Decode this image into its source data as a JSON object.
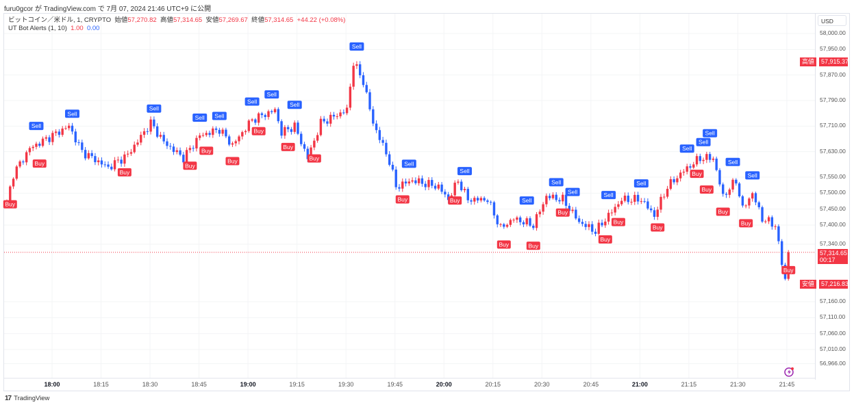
{
  "published": "furu0gcor が TradingView.com で 7月 07, 2024 21:46 UTC+9 に公開",
  "legend": {
    "symbol": "ビットコイン／米ドル, 1, CRYPTO",
    "open_label": "始値",
    "open": "57,270.82",
    "high_label": "高値",
    "high": "57,314.65",
    "low_label": "安値",
    "low": "57,269.67",
    "close_label": "終値",
    "close": "57,314.65",
    "change": "+44.22 (+0.08%)",
    "indicator": "UT Bot Alerts (1, 10)",
    "ind_v1": "1.00",
    "ind_v2": "0.00"
  },
  "currency": "USD",
  "price_labels": [
    "58,000.00",
    "57,950.00",
    "57,870.00",
    "57,790.00",
    "57,710.00",
    "57,630.00",
    "57,550.00",
    "57,500.00",
    "57,450.00",
    "57,400.00",
    "57,340.00",
    "57,160.00",
    "57,110.00",
    "57,060.00",
    "57,010.00",
    "56,966.00"
  ],
  "tags": {
    "high_label": "高値",
    "high": "57,915.37",
    "last": "57,314.65",
    "countdown": "00:17",
    "low_label": "安値",
    "low": "57,216.83"
  },
  "time_labels": [
    "18:00",
    "18:15",
    "18:30",
    "18:45",
    "19:00",
    "19:15",
    "19:30",
    "19:45",
    "20:00",
    "20:15",
    "20:30",
    "20:45",
    "21:00",
    "21:15",
    "21:30",
    "21:45"
  ],
  "footer": "TradingView",
  "colors": {
    "up": "#f23645",
    "down": "#2962ff"
  },
  "chart_data": {
    "type": "candlestick",
    "start_time": "17:46",
    "interval_min": 1,
    "keypoints_minute_price": [
      [
        0,
        57470
      ],
      [
        2,
        57560
      ],
      [
        7,
        57640
      ],
      [
        19,
        57710
      ],
      [
        23,
        57630
      ],
      [
        31,
        57580
      ],
      [
        37,
        57620
      ],
      [
        44,
        57720
      ],
      [
        48,
        57660
      ],
      [
        54,
        57610
      ],
      [
        59,
        57680
      ],
      [
        65,
        57700
      ],
      [
        69,
        57650
      ],
      [
        75,
        57730
      ],
      [
        82,
        57760
      ],
      [
        84,
        57690
      ],
      [
        88,
        57710
      ],
      [
        92,
        57610
      ],
      [
        96,
        57720
      ],
      [
        104,
        57760
      ],
      [
        106,
        57910
      ],
      [
        109,
        57850
      ],
      [
        112,
        57720
      ],
      [
        117,
        57600
      ],
      [
        119,
        57520
      ],
      [
        124,
        57540
      ],
      [
        132,
        57520
      ],
      [
        135,
        57480
      ],
      [
        138,
        57540
      ],
      [
        141,
        57480
      ],
      [
        147,
        57480
      ],
      [
        151,
        57390
      ],
      [
        155,
        57420
      ],
      [
        161,
        57400
      ],
      [
        165,
        57490
      ],
      [
        170,
        57480
      ],
      [
        175,
        57410
      ],
      [
        180,
        57380
      ],
      [
        184,
        57430
      ],
      [
        188,
        57480
      ],
      [
        194,
        57480
      ],
      [
        198,
        57430
      ],
      [
        202,
        57520
      ],
      [
        207,
        57570
      ],
      [
        212,
        57610
      ],
      [
        216,
        57610
      ],
      [
        219,
        57490
      ],
      [
        223,
        57540
      ],
      [
        225,
        57450
      ],
      [
        228,
        57500
      ],
      [
        231,
        57420
      ],
      [
        235,
        57400
      ],
      [
        237,
        57280
      ],
      [
        238,
        57230
      ],
      [
        239,
        57314.65
      ]
    ],
    "buy_minutes": [
      1,
      10,
      36,
      56,
      61,
      69,
      77,
      86,
      94,
      121,
      137,
      152,
      161,
      170,
      183,
      187,
      199,
      211,
      214,
      219,
      226,
      239
    ],
    "sell_minutes": [
      9,
      20,
      45,
      59,
      65,
      75,
      81,
      88,
      107,
      123,
      140,
      159,
      168,
      173,
      184,
      194,
      208,
      213,
      215,
      222,
      228
    ],
    "buy_label": "Buy",
    "sell_label": "Sell"
  }
}
